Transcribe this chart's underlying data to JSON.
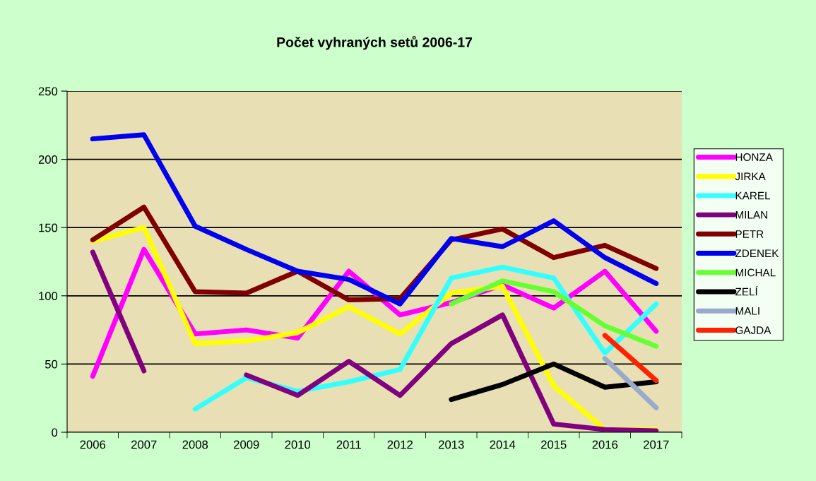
{
  "chart_data": {
    "type": "line",
    "title": "Počet vyhraných setů 2006-17",
    "categories": [
      "2006",
      "2007",
      "2008",
      "2009",
      "2010",
      "2011",
      "2012",
      "2013",
      "2014",
      "2015",
      "2016",
      "2017"
    ],
    "series": [
      {
        "name": "HONZA",
        "color": "#ff00ff",
        "values": [
          41,
          134,
          72,
          75,
          69,
          118,
          86,
          95,
          108,
          91,
          118,
          74
        ]
      },
      {
        "name": "JIRKA",
        "color": "#ffff00",
        "values": [
          140,
          150,
          65,
          67,
          73,
          92,
          72,
          102,
          107,
          34,
          2,
          2
        ]
      },
      {
        "name": "KAREL",
        "color": "#33ffff",
        "values": [
          null,
          null,
          17,
          40,
          30,
          37,
          46,
          113,
          121,
          113,
          58,
          94
        ]
      },
      {
        "name": "MILAN",
        "color": "#800080",
        "values": [
          132,
          45,
          null,
          42,
          27,
          52,
          27,
          65,
          86,
          6,
          2,
          1
        ]
      },
      {
        "name": "PETR",
        "color": "#800000",
        "values": [
          141,
          165,
          103,
          102,
          118,
          97,
          98,
          141,
          149,
          128,
          137,
          120
        ]
      },
      {
        "name": "ZDENEK",
        "color": "#0000ee",
        "values": [
          215,
          218,
          151,
          134,
          118,
          112,
          94,
          142,
          136,
          155,
          128,
          109
        ]
      },
      {
        "name": "MICHAL",
        "color": "#66ff33",
        "values": [
          null,
          null,
          null,
          null,
          null,
          null,
          null,
          94,
          111,
          103,
          78,
          63
        ]
      },
      {
        "name": "ZELÍ",
        "color": "#000000",
        "values": [
          null,
          null,
          null,
          null,
          null,
          null,
          null,
          24,
          35,
          50,
          33,
          37
        ]
      },
      {
        "name": "MALI",
        "color": "#99aacc",
        "values": [
          null,
          null,
          null,
          null,
          null,
          null,
          null,
          null,
          null,
          null,
          54,
          18
        ]
      },
      {
        "name": "GAJDA",
        "color": "#ff2200",
        "values": [
          null,
          null,
          null,
          null,
          null,
          null,
          null,
          null,
          null,
          null,
          71,
          38
        ]
      }
    ],
    "ylim": [
      0,
      250
    ],
    "yticks": [
      0,
      50,
      100,
      150,
      200,
      250
    ],
    "grid": "y",
    "legend": "right",
    "marker": "none",
    "line_style": "solid"
  }
}
